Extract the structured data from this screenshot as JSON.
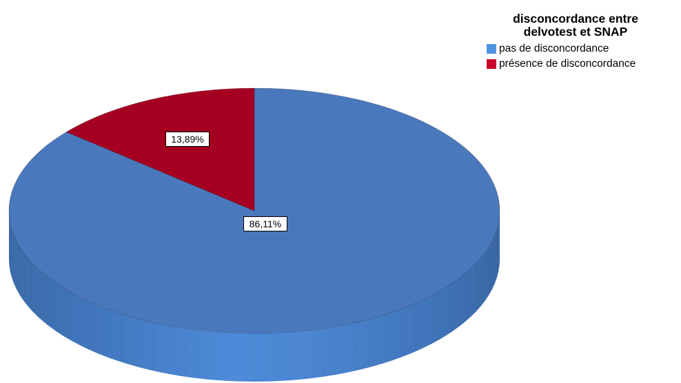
{
  "chart_data": {
    "type": "pie",
    "title": "disconcordance entre\ndelvotest et SNAP",
    "legend_position": "top-right",
    "style": "3d",
    "slices": [
      {
        "label": "pas de disconcordance",
        "value": 86.11,
        "data_label": "86,11%",
        "color": "#4a78bd"
      },
      {
        "label": "présence de disconcordance",
        "value": 13.89,
        "data_label": "13,89%",
        "color": "#a50021"
      }
    ],
    "legend_colors": [
      "#4f93e3",
      "#c8002a"
    ]
  }
}
